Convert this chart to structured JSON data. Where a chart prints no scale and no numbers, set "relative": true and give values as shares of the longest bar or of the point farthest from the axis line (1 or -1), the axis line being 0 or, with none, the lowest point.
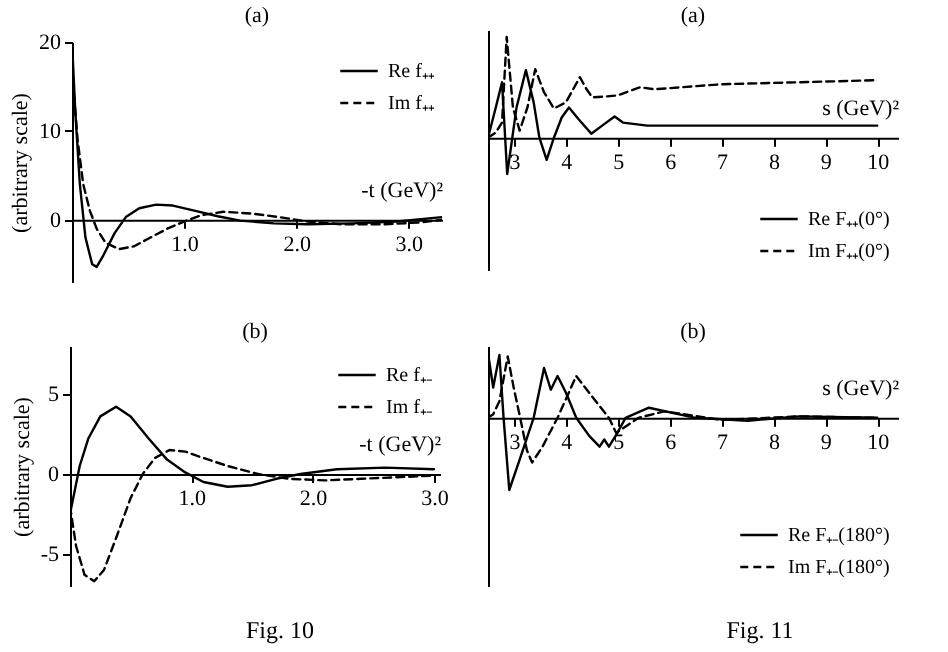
{
  "chart_data": [
    {
      "type": "line",
      "title": "(a)",
      "xlabel": "-t (GeV)²",
      "ylabel": "(arbitrary scale)",
      "xlim": [
        0,
        3.3
      ],
      "ylim": [
        -7,
        20
      ],
      "xticks": [
        {
          "value": 1,
          "label": "1.0"
        },
        {
          "value": 2,
          "label": "2.0"
        },
        {
          "value": 3,
          "label": "3.0"
        }
      ],
      "yticks": [
        0,
        10,
        20
      ],
      "legend": "top right",
      "series": [
        {
          "name": "Re f₊₊",
          "color": "#000000",
          "line_style": "solid",
          "x": [
            0,
            0.03,
            0.07,
            0.12,
            0.18,
            0.22,
            0.28,
            0.38,
            0.48,
            0.6,
            0.75,
            0.9,
            1.1,
            1.3,
            1.5,
            1.8,
            2.1,
            2.5,
            2.9,
            3.3
          ],
          "values": [
            20,
            12,
            4,
            -2,
            -5,
            -5.3,
            -4,
            -1.5,
            0.3,
            1.3,
            1.7,
            1.6,
            1.0,
            0.4,
            -0.1,
            -0.4,
            -0.5,
            -0.4,
            -0.2,
            0.3
          ]
        },
        {
          "name": "Im f₊₊",
          "color": "#000000",
          "line_style": "dashed",
          "x": [
            0,
            0.05,
            0.1,
            0.16,
            0.22,
            0.3,
            0.42,
            0.55,
            0.7,
            0.85,
            1.0,
            1.15,
            1.35,
            1.6,
            1.85,
            2.1,
            2.4,
            2.8,
            3.1,
            3.3
          ],
          "values": [
            17,
            9,
            4,
            1,
            -1,
            -2.6,
            -3.3,
            -3,
            -2,
            -1,
            -0.2,
            0.5,
            0.9,
            0.7,
            0.3,
            -0.2,
            -0.5,
            -0.5,
            -0.3,
            0
          ]
        }
      ]
    },
    {
      "type": "line",
      "title": "(b)",
      "xlabel": "-t (GeV)²",
      "ylabel": "(arbitrary scale)",
      "xlim": [
        0,
        3.05
      ],
      "ylim": [
        -7,
        8
      ],
      "xticks": [
        {
          "value": 1,
          "label": "1.0"
        },
        {
          "value": 2,
          "label": "2.0"
        },
        {
          "value": 3,
          "label": "3.0"
        }
      ],
      "yticks": [
        -5,
        0,
        5
      ],
      "legend": "top right",
      "annotations": [
        "Fig. 10"
      ],
      "series": [
        {
          "name": "Re f₊₋",
          "color": "#000000",
          "line_style": "solid",
          "x": [
            0,
            0.04,
            0.08,
            0.15,
            0.25,
            0.38,
            0.5,
            0.65,
            0.8,
            0.95,
            1.1,
            1.3,
            1.5,
            1.7,
            1.9,
            2.2,
            2.6,
            3.0
          ],
          "values": [
            -2.5,
            -1,
            0.5,
            2.2,
            3.6,
            4.2,
            3.6,
            2.2,
            0.9,
            0.1,
            -0.5,
            -0.8,
            -0.7,
            -0.3,
            0,
            0.3,
            0.4,
            0.3
          ]
        },
        {
          "name": "Im f₊₋",
          "color": "#000000",
          "line_style": "dashed",
          "x": [
            0,
            0.05,
            0.12,
            0.2,
            0.28,
            0.38,
            0.5,
            0.6,
            0.7,
            0.82,
            0.95,
            1.1,
            1.3,
            1.55,
            1.8,
            2.1,
            2.4,
            2.7,
            3.0
          ],
          "values": [
            -2,
            -4.5,
            -6.3,
            -6.7,
            -6,
            -4,
            -1.5,
            0,
            1,
            1.5,
            1.4,
            1.0,
            0.5,
            0,
            -0.3,
            -0.4,
            -0.3,
            -0.2,
            -0.1
          ]
        }
      ]
    },
    {
      "type": "line",
      "title": "(a)",
      "xlabel": "s (GeV)²",
      "relative": true,
      "xlim": [
        2.5,
        10.4
      ],
      "xticks": [
        3,
        4,
        5,
        6,
        7,
        8,
        9,
        10
      ],
      "legend": "bottom right",
      "series": [
        {
          "name": "Re F₊₊(0°)",
          "color": "#000000",
          "line_style": "solid",
          "x": [
            2.5,
            2.65,
            2.77,
            2.87,
            3.05,
            3.23,
            3.38,
            3.49,
            3.63,
            3.77,
            3.92,
            4.06,
            4.25,
            4.49,
            4.7,
            4.94,
            5.1,
            5.57,
            7,
            10
          ],
          "values": [
            0,
            0.3,
            0.55,
            -0.36,
            0.3,
            0.67,
            0.35,
            0,
            -0.22,
            0,
            0.2,
            0.3,
            0.18,
            0.04,
            0.12,
            0.21,
            0.15,
            0.12,
            0.12,
            0.12
          ]
        },
        {
          "name": "Im F₊₊(0°)",
          "color": "#000000",
          "line_style": "dashed",
          "x": [
            2.5,
            2.65,
            2.77,
            2.86,
            2.98,
            3.11,
            3.26,
            3.41,
            3.58,
            3.77,
            4.0,
            4.27,
            4.4,
            4.51,
            4.8,
            5.0,
            5.43,
            5.7,
            7,
            10
          ],
          "values": [
            0,
            0.05,
            0.15,
            1.0,
            0.3,
            0.07,
            0.3,
            0.68,
            0.45,
            0.29,
            0.35,
            0.6,
            0.48,
            0.4,
            0.41,
            0.42,
            0.5,
            0.48,
            0.53,
            0.57
          ]
        }
      ]
    },
    {
      "type": "line",
      "title": "(b)",
      "xlabel": "s (GeV)²",
      "relative": true,
      "xlim": [
        2.5,
        10.4
      ],
      "xticks": [
        3,
        4,
        5,
        6,
        7,
        8,
        9,
        10
      ],
      "legend": "bottom right",
      "annotations": [
        "Fig. 11"
      ],
      "series": [
        {
          "name": "Re F₊₋(180°)",
          "color": "#000000",
          "line_style": "solid",
          "x": [
            2.5,
            2.6,
            2.72,
            2.8,
            2.91,
            3.1,
            3.38,
            3.58,
            3.71,
            3.84,
            4.0,
            4.2,
            4.45,
            4.65,
            4.74,
            4.83,
            5.0,
            5.15,
            5.6,
            6.5,
            7.5,
            8.5,
            10
          ],
          "values": [
            0.9,
            0.42,
            0.87,
            0,
            -1.0,
            -0.6,
            0,
            0.69,
            0.39,
            0.58,
            0.35,
            0,
            -0.25,
            -0.4,
            -0.3,
            -0.4,
            -0.2,
            0,
            0.14,
            0,
            -0.04,
            0.02,
            0
          ]
        },
        {
          "name": "Im F₊₋(180°)",
          "color": "#000000",
          "line_style": "dashed",
          "x": [
            2.5,
            2.6,
            2.72,
            2.88,
            3.0,
            3.12,
            3.25,
            3.35,
            3.55,
            3.84,
            4.2,
            4.5,
            4.83,
            4.97,
            5.4,
            5.9,
            7,
            8.5,
            10
          ],
          "values": [
            0,
            0.05,
            0.23,
            0.85,
            0.4,
            0,
            -0.45,
            -0.62,
            -0.4,
            0,
            0.58,
            0.3,
            0,
            -0.21,
            0,
            0.09,
            -0.03,
            0.02,
            0
          ]
        }
      ]
    }
  ]
}
